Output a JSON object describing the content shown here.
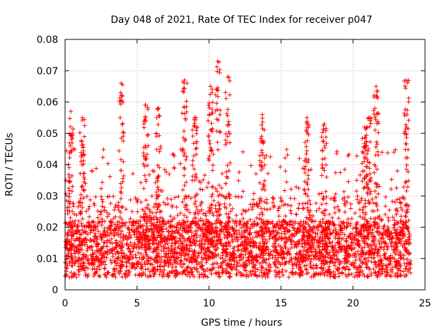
{
  "chart_data": {
    "type": "scatter",
    "title": "Day 048 of 2021, Rate Of TEC Index for receiver p047",
    "xlabel": "GPS time / hours",
    "ylabel": "ROTI / TECUs",
    "xlim": [
      0,
      25
    ],
    "ylim": [
      0,
      0.08
    ],
    "x_ticks": [
      0,
      5,
      10,
      15,
      20,
      25
    ],
    "y_ticks": [
      0,
      0.01,
      0.02,
      0.03,
      0.04,
      0.05,
      0.06,
      0.07,
      0.08
    ],
    "x_tick_labels": [
      "0",
      "5",
      "10",
      "15",
      "20",
      "25"
    ],
    "y_tick_labels": [
      "0",
      "0.01",
      "0.02",
      "0.03",
      "0.04",
      "0.05",
      "0.06",
      "0.07",
      "0.08"
    ],
    "grid": true,
    "marker": "+",
    "marker_color": "#ff0000",
    "series": [
      {
        "name": "ROTI",
        "x_range": [
          0,
          24
        ],
        "baseline_mean": 0.012,
        "typical_max": 0.045,
        "peaks": [
          {
            "x": 0.4,
            "y": 0.057
          },
          {
            "x": 1.2,
            "y": 0.055
          },
          {
            "x": 3.9,
            "y": 0.066
          },
          {
            "x": 5.6,
            "y": 0.059
          },
          {
            "x": 6.5,
            "y": 0.058
          },
          {
            "x": 8.3,
            "y": 0.067
          },
          {
            "x": 9.0,
            "y": 0.055
          },
          {
            "x": 10.1,
            "y": 0.065
          },
          {
            "x": 10.6,
            "y": 0.073
          },
          {
            "x": 11.3,
            "y": 0.068
          },
          {
            "x": 13.7,
            "y": 0.056
          },
          {
            "x": 16.8,
            "y": 0.055
          },
          {
            "x": 18.0,
            "y": 0.053
          },
          {
            "x": 20.8,
            "y": 0.052
          },
          {
            "x": 21.1,
            "y": 0.055
          },
          {
            "x": 21.6,
            "y": 0.065
          },
          {
            "x": 23.7,
            "y": 0.067
          }
        ]
      }
    ]
  }
}
